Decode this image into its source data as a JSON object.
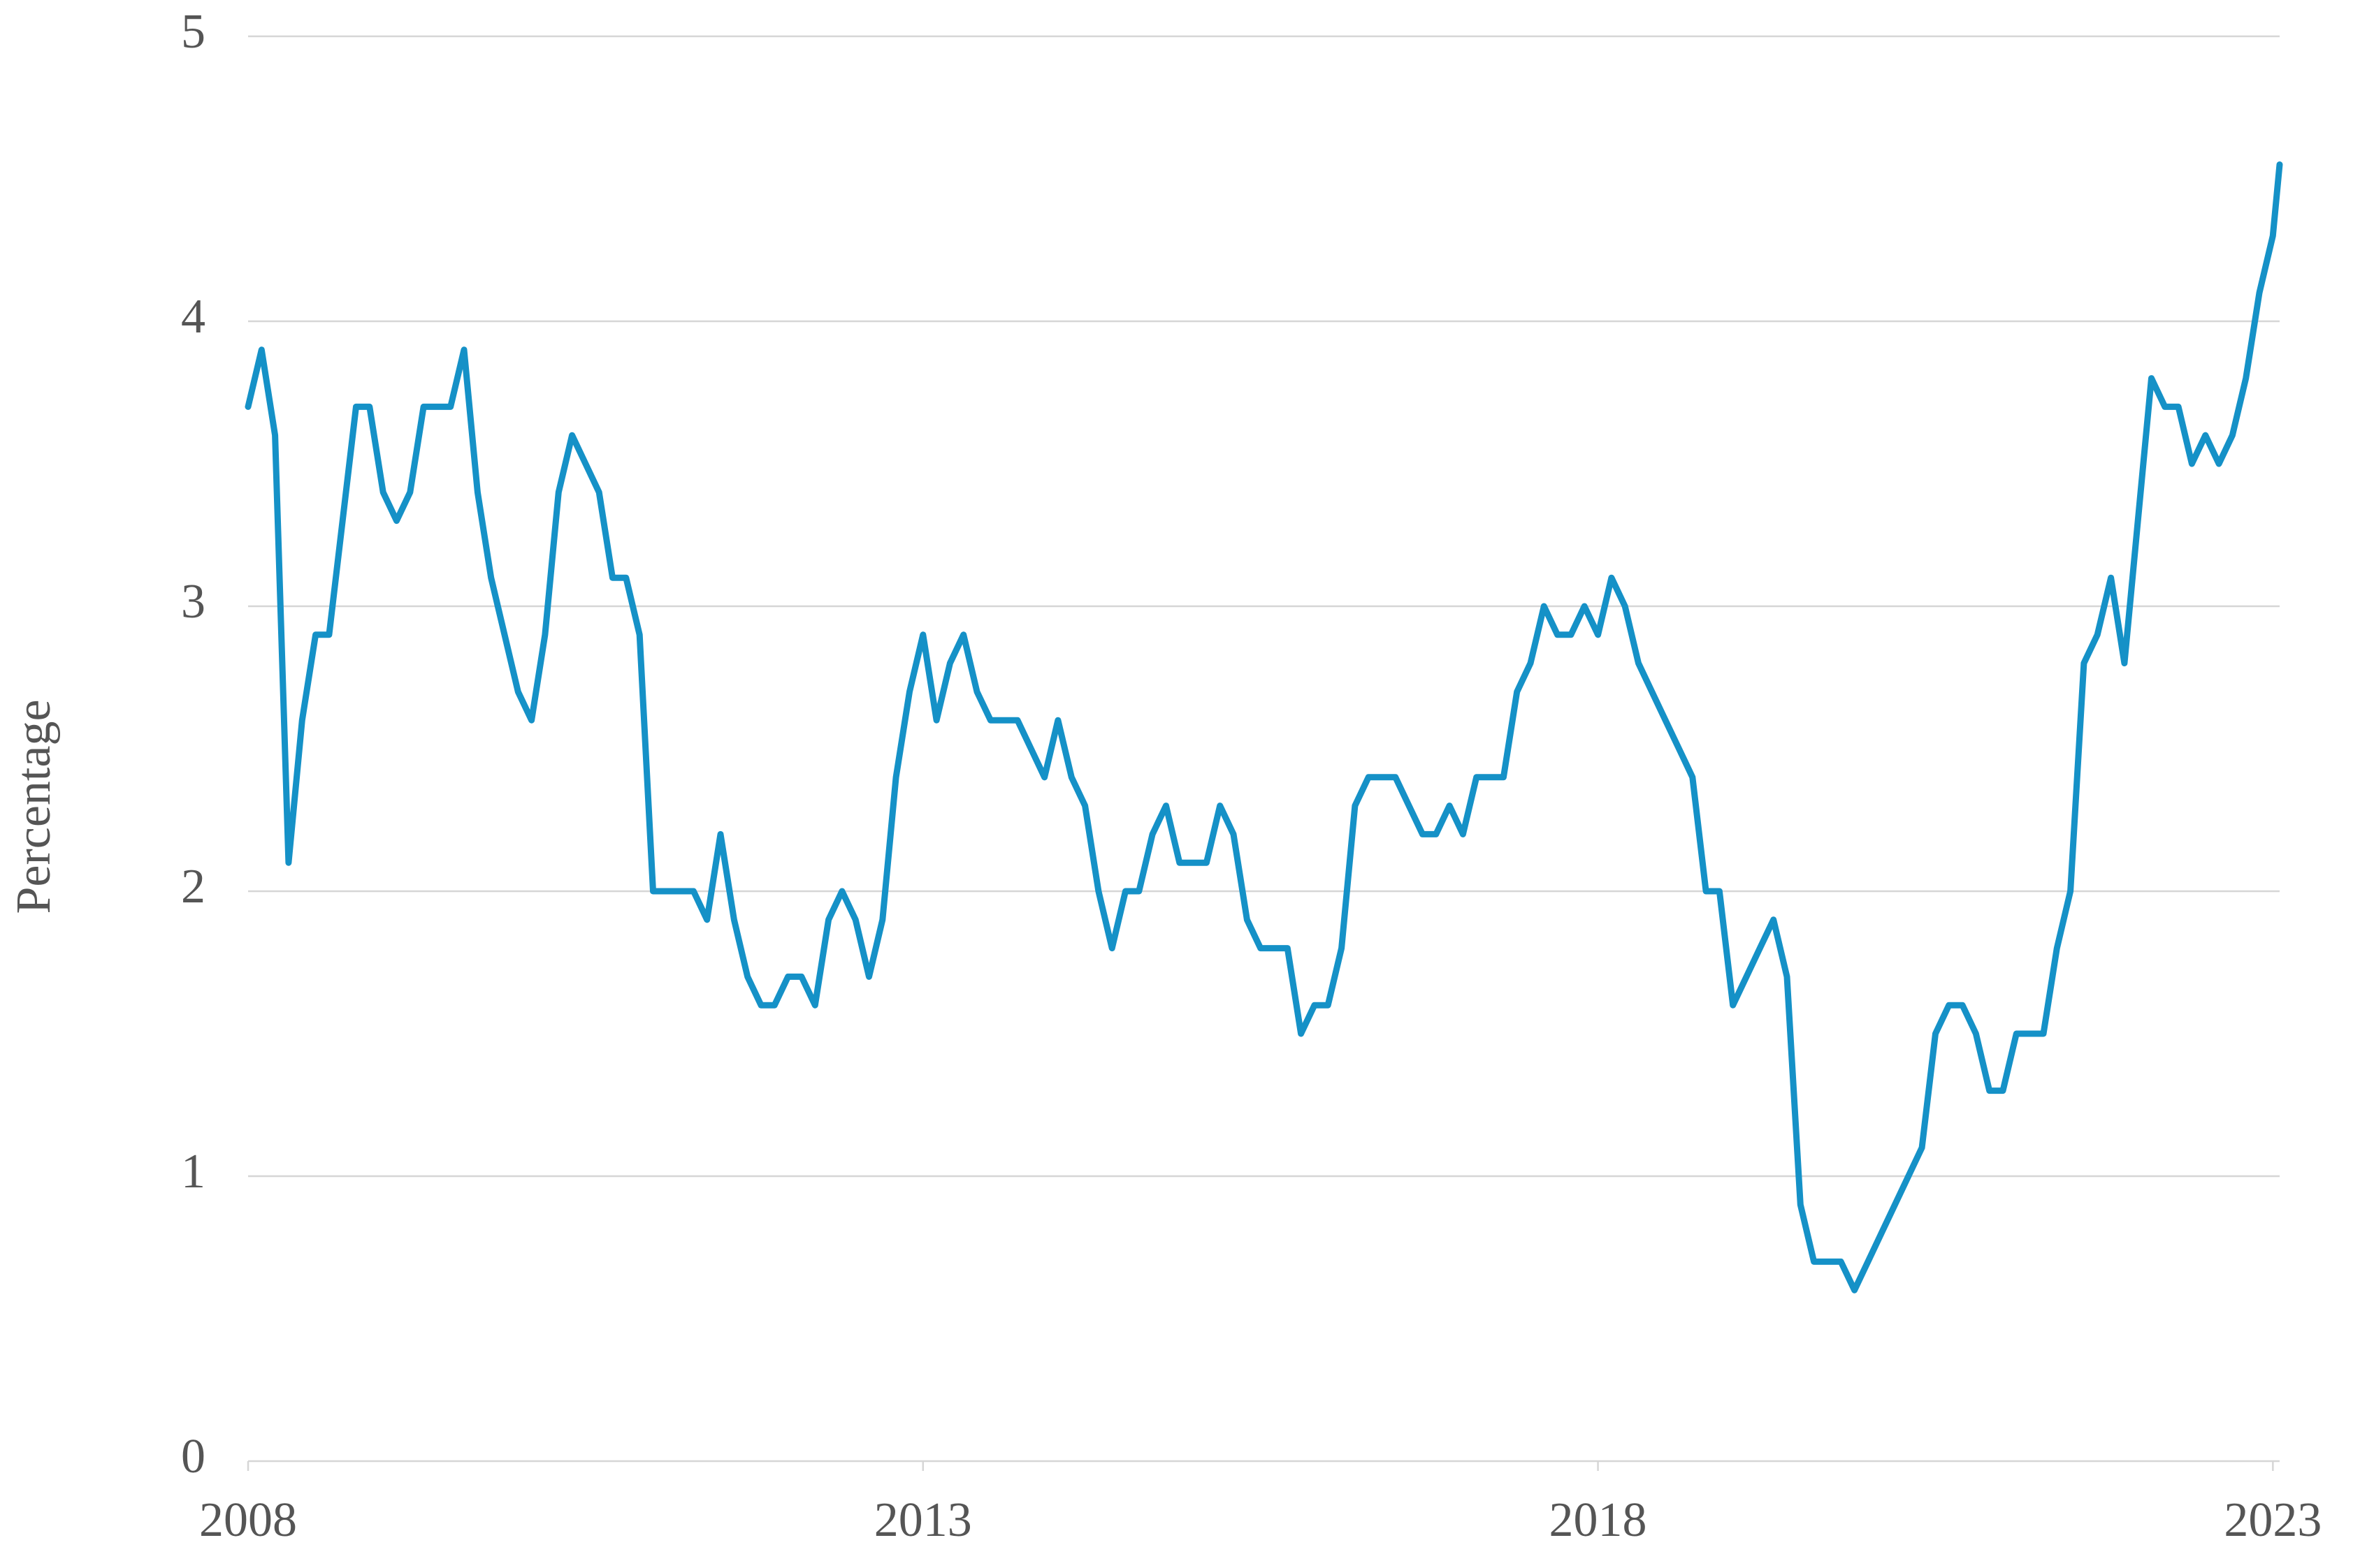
{
  "chart_data": {
    "type": "line",
    "y_label": "Percentage",
    "x": [
      2008.0,
      2008.1,
      2008.2,
      2008.3,
      2008.4,
      2008.5,
      2008.6,
      2008.7,
      2008.8,
      2008.9,
      2009.0,
      2009.1,
      2009.2,
      2009.3,
      2009.4,
      2009.5,
      2009.6,
      2009.7,
      2009.8,
      2009.9,
      2010.0,
      2010.1,
      2010.2,
      2010.3,
      2010.4,
      2010.5,
      2010.6,
      2010.7,
      2010.8,
      2010.9,
      2011.0,
      2011.1,
      2011.2,
      2011.3,
      2011.4,
      2011.5,
      2011.6,
      2011.7,
      2011.8,
      2011.9,
      2012.0,
      2012.1,
      2012.2,
      2012.3,
      2012.4,
      2012.5,
      2012.6,
      2012.7,
      2012.8,
      2012.9,
      2013.0,
      2013.1,
      2013.2,
      2013.3,
      2013.4,
      2013.5,
      2013.6,
      2013.7,
      2013.8,
      2013.9,
      2014.0,
      2014.1,
      2014.2,
      2014.3,
      2014.4,
      2014.5,
      2014.6,
      2014.7,
      2014.8,
      2014.9,
      2015.0,
      2015.1,
      2015.2,
      2015.3,
      2015.4,
      2015.5,
      2015.6,
      2015.7,
      2015.8,
      2015.9,
      2016.0,
      2016.1,
      2016.2,
      2016.3,
      2016.4,
      2016.5,
      2016.6,
      2016.7,
      2016.8,
      2016.9,
      2017.0,
      2017.1,
      2017.2,
      2017.3,
      2017.4,
      2017.5,
      2017.6,
      2017.7,
      2017.8,
      2017.9,
      2018.0,
      2018.1,
      2018.2,
      2018.3,
      2018.4,
      2018.5,
      2018.6,
      2018.7,
      2018.8,
      2018.9,
      2019.0,
      2019.1,
      2019.2,
      2019.3,
      2019.4,
      2019.5,
      2019.6,
      2019.7,
      2019.8,
      2019.9,
      2020.0,
      2020.1,
      2020.2,
      2020.3,
      2020.4,
      2020.5,
      2020.6,
      2020.7,
      2020.8,
      2020.9,
      2021.0,
      2021.1,
      2021.2,
      2021.3,
      2021.4,
      2021.5,
      2021.6,
      2021.7,
      2021.8,
      2021.9,
      2022.0,
      2022.1,
      2022.2,
      2022.3,
      2022.4,
      2022.5,
      2022.6,
      2022.7,
      2022.8,
      2022.9,
      2023.0,
      2023.05
    ],
    "series": [
      {
        "name": "Percentage",
        "color": "#1591c7",
        "values": [
          3.7,
          3.9,
          3.6,
          2.1,
          2.6,
          2.9,
          2.9,
          3.3,
          3.7,
          3.7,
          3.4,
          3.3,
          3.4,
          3.7,
          3.7,
          3.7,
          3.9,
          3.4,
          3.1,
          2.9,
          2.7,
          2.6,
          2.9,
          3.4,
          3.6,
          3.5,
          3.4,
          3.1,
          3.1,
          2.9,
          2.0,
          2.0,
          2.0,
          2.0,
          1.9,
          2.2,
          1.9,
          1.7,
          1.6,
          1.6,
          1.7,
          1.7,
          1.6,
          1.9,
          2.0,
          1.9,
          1.7,
          1.9,
          2.4,
          2.7,
          2.9,
          2.6,
          2.8,
          2.9,
          2.7,
          2.6,
          2.6,
          2.6,
          2.5,
          2.4,
          2.6,
          2.4,
          2.3,
          2.0,
          1.8,
          2.0,
          2.0,
          2.2,
          2.3,
          2.1,
          2.1,
          2.1,
          2.3,
          2.2,
          1.9,
          1.8,
          1.8,
          1.8,
          1.5,
          1.6,
          1.6,
          1.8,
          2.3,
          2.4,
          2.4,
          2.4,
          2.3,
          2.2,
          2.2,
          2.3,
          2.2,
          2.4,
          2.4,
          2.4,
          2.7,
          2.8,
          3.0,
          2.9,
          2.9,
          3.0,
          2.9,
          3.1,
          3.0,
          2.8,
          2.7,
          2.6,
          2.5,
          2.4,
          2.0,
          2.0,
          1.6,
          1.7,
          1.8,
          1.9,
          1.7,
          0.9,
          0.7,
          0.7,
          0.7,
          0.6,
          0.7,
          0.8,
          0.9,
          1.0,
          1.1,
          1.5,
          1.6,
          1.6,
          1.5,
          1.3,
          1.3,
          1.5,
          1.5,
          1.5,
          1.8,
          2.0,
          2.8,
          2.9,
          3.1,
          2.8,
          3.3,
          3.8,
          3.7,
          3.7,
          3.5,
          3.6,
          3.5,
          3.6,
          3.8,
          4.1,
          4.3,
          4.55
        ]
      }
    ],
    "xlim": [
      2008,
      2023.05
    ],
    "xticks": [
      2008,
      2013,
      2018,
      2023
    ],
    "ylim": [
      0,
      5
    ],
    "yticks": [
      0,
      1,
      2,
      3,
      4,
      5
    ],
    "grid": true
  }
}
